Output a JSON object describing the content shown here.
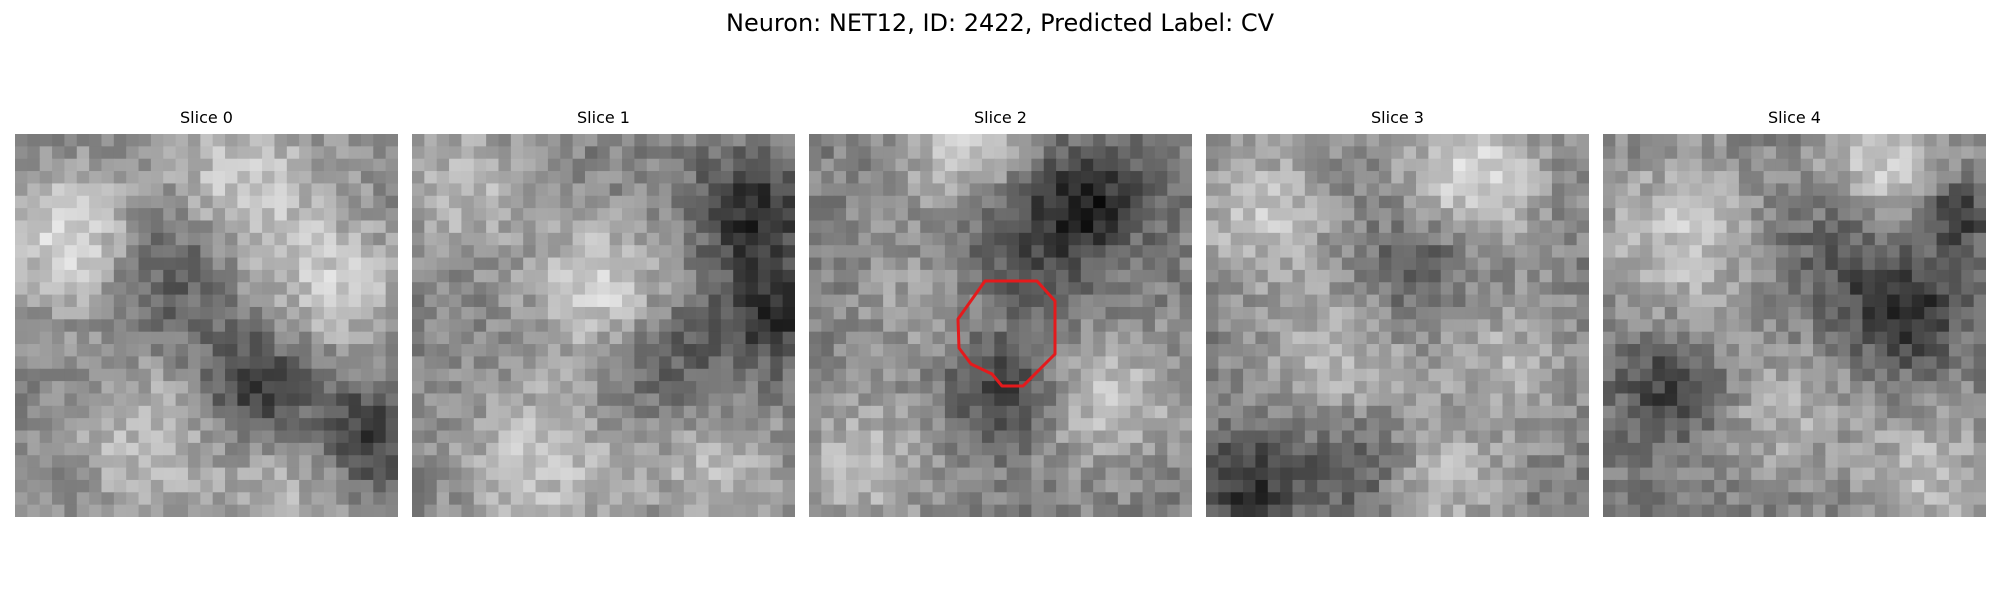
{
  "figure": {
    "title": "Neuron: NET12, ID: 2422, Predicted Label: CV",
    "slices": [
      {
        "label": "Slice 0"
      },
      {
        "label": "Slice 1"
      },
      {
        "label": "Slice 2",
        "has_contour": true,
        "contour_color": "#e41a1c"
      },
      {
        "label": "Slice 3"
      },
      {
        "label": "Slice 4"
      }
    ]
  }
}
